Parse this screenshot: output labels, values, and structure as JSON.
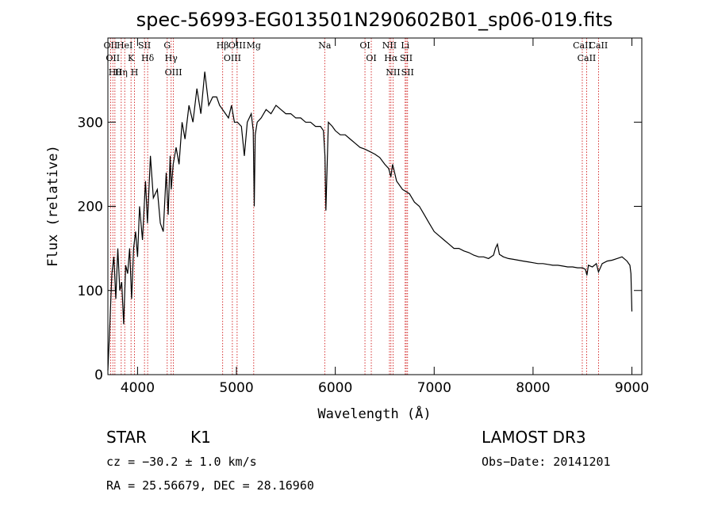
{
  "chart_data": {
    "type": "line",
    "title": "spec-56993-EG013501N290602B01_sp06-019.fits",
    "xlabel": "Wavelength (Å)",
    "ylabel": "Flux (relative)",
    "xlim": [
      3700,
      9100
    ],
    "ylim": [
      0,
      400
    ],
    "x_ticks": [
      4000,
      5000,
      6000,
      7000,
      8000,
      9000
    ],
    "y_ticks": [
      0,
      100,
      200,
      300
    ],
    "grid": false,
    "series": [
      {
        "color": "#000000",
        "x": [
          3700,
          3720,
          3740,
          3760,
          3780,
          3800,
          3820,
          3840,
          3860,
          3880,
          3900,
          3920,
          3940,
          3960,
          3980,
          4000,
          4020,
          4050,
          4080,
          4100,
          4130,
          4160,
          4200,
          4230,
          4260,
          4290,
          4310,
          4330,
          4340,
          4360,
          4390,
          4420,
          4450,
          4480,
          4520,
          4560,
          4600,
          4640,
          4680,
          4720,
          4760,
          4800,
          4830,
          4860,
          4890,
          4920,
          4950,
          4980,
          5010,
          5050,
          5080,
          5110,
          5150,
          5170,
          5180,
          5190,
          5210,
          5250,
          5300,
          5350,
          5400,
          5450,
          5500,
          5550,
          5600,
          5650,
          5700,
          5750,
          5800,
          5850,
          5880,
          5895,
          5905,
          5930,
          5970,
          6000,
          6050,
          6100,
          6150,
          6200,
          6250,
          6300,
          6350,
          6400,
          6450,
          6500,
          6540,
          6562,
          6580,
          6620,
          6680,
          6750,
          6800,
          6850,
          6900,
          6950,
          7000,
          7050,
          7100,
          7150,
          7200,
          7250,
          7300,
          7350,
          7400,
          7450,
          7500,
          7550,
          7600,
          7620,
          7640,
          7660,
          7700,
          7750,
          7800,
          7850,
          7900,
          7950,
          8000,
          8050,
          8100,
          8150,
          8200,
          8250,
          8300,
          8350,
          8400,
          8450,
          8500,
          8530,
          8545,
          8560,
          8600,
          8640,
          8662,
          8700,
          8750,
          8800,
          8850,
          8900,
          8950,
          8980,
          8990,
          9000
        ],
        "values": [
          5,
          60,
          120,
          140,
          90,
          150,
          100,
          110,
          60,
          130,
          120,
          150,
          90,
          150,
          170,
          140,
          200,
          160,
          230,
          180,
          260,
          210,
          220,
          180,
          170,
          240,
          190,
          260,
          220,
          250,
          270,
          250,
          300,
          280,
          320,
          300,
          340,
          310,
          360,
          320,
          330,
          330,
          320,
          315,
          310,
          305,
          320,
          300,
          300,
          295,
          260,
          300,
          310,
          290,
          200,
          285,
          300,
          305,
          315,
          310,
          320,
          315,
          310,
          310,
          305,
          305,
          300,
          300,
          295,
          295,
          290,
          260,
          195,
          300,
          295,
          290,
          285,
          285,
          280,
          275,
          270,
          268,
          265,
          262,
          258,
          250,
          245,
          235,
          250,
          230,
          220,
          215,
          205,
          200,
          190,
          180,
          170,
          165,
          160,
          155,
          150,
          150,
          147,
          145,
          142,
          140,
          140,
          138,
          142,
          150,
          155,
          143,
          140,
          138,
          137,
          136,
          135,
          134,
          133,
          132,
          132,
          131,
          130,
          130,
          129,
          128,
          128,
          127,
          127,
          125,
          118,
          130,
          128,
          132,
          122,
          132,
          135,
          136,
          138,
          140,
          135,
          130,
          120,
          75
        ]
      }
    ],
    "line_markers": [
      {
        "wavelength": 3727,
        "label": "OII"
      },
      {
        "wavelength": 3750,
        "label": "OII"
      },
      {
        "wavelength": 3771,
        "label": "Hθ"
      },
      {
        "wavelength": 3835,
        "label": "Hη"
      },
      {
        "wavelength": 3870,
        "label": "HeI"
      },
      {
        "wavelength": 3934,
        "label": "K"
      },
      {
        "wavelength": 3969,
        "label": "H"
      },
      {
        "wavelength": 4070,
        "label": "SII"
      },
      {
        "wavelength": 4102,
        "label": "Hδ"
      },
      {
        "wavelength": 4300,
        "label": "G"
      },
      {
        "wavelength": 4340,
        "label": "Hγ"
      },
      {
        "wavelength": 4363,
        "label": "OIII"
      },
      {
        "wavelength": 4861,
        "label": "Hβ"
      },
      {
        "wavelength": 4959,
        "label": "OIII"
      },
      {
        "wavelength": 5007,
        "label": "OIII"
      },
      {
        "wavelength": 5175,
        "label": "Mg"
      },
      {
        "wavelength": 5893,
        "label": "Na"
      },
      {
        "wavelength": 6300,
        "label": "OI"
      },
      {
        "wavelength": 6364,
        "label": "OI"
      },
      {
        "wavelength": 6548,
        "label": "NII"
      },
      {
        "wavelength": 6563,
        "label": "Hα"
      },
      {
        "wavelength": 6584,
        "label": "NII"
      },
      {
        "wavelength": 6707,
        "label": "Li"
      },
      {
        "wavelength": 6717,
        "label": "SII"
      },
      {
        "wavelength": 6731,
        "label": "SII"
      },
      {
        "wavelength": 8498,
        "label": "CaII"
      },
      {
        "wavelength": 8542,
        "label": "CaII"
      },
      {
        "wavelength": 8662,
        "label": "CaII"
      }
    ]
  },
  "info": {
    "class": "STAR",
    "subclass": "K1",
    "survey": "LAMOST DR3",
    "cz": "cz = −30.2 ± 1.0 km/s",
    "obs_date": "Obs−Date: 20141201",
    "coords": "RA =  25.56679, DEC =  28.16960"
  },
  "colors": {
    "spectrum": "#000000",
    "line_markers": "#cc0000",
    "axes": "#000000"
  }
}
